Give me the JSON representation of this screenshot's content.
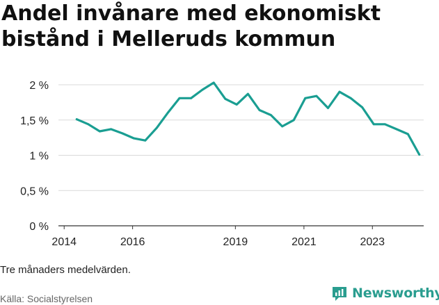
{
  "title": "Andel invånare med ekonomiskt bistånd i Melleruds kommun",
  "note": "Tre månaders medelvärden.",
  "source": "Källa: Socialstyrelsen",
  "brand": {
    "name": "Newsworthy",
    "color": "#2a9d8f",
    "icon": "newsworthy-logo-icon"
  },
  "colors": {
    "line": "#1a9e92",
    "grid": "#d9d9d9",
    "axis": "#333333",
    "tick_text": "#222222"
  },
  "chart_data": {
    "type": "line",
    "title": "Andel invånare med ekonomiskt bistånd i Melleruds kommun",
    "xlabel": "",
    "ylabel": "",
    "x_ticks": [
      "2014",
      "2016",
      "2019",
      "2021",
      "2023"
    ],
    "x_tick_dates": [
      "2014-01-01",
      "2016-01-01",
      "2019-01-01",
      "2021-01-01",
      "2023-01-01"
    ],
    "y_ticks": [
      0,
      0.5,
      1,
      1.5,
      2
    ],
    "y_tick_labels": [
      "0 %",
      "0,5 %",
      "1 %",
      "1,5 %",
      "2 %"
    ],
    "ylim": [
      0,
      2.05
    ],
    "xlim": [
      "2013-11-01",
      "2024-07-01"
    ],
    "grid": true,
    "series": [
      {
        "x": [
          "2014-05-15",
          "2014-09-15",
          "2015-01-15",
          "2015-05-15",
          "2015-09-15",
          "2016-01-15",
          "2016-05-15",
          "2016-09-15",
          "2017-01-15",
          "2017-05-15",
          "2017-09-15",
          "2018-01-15",
          "2018-05-15",
          "2018-09-15",
          "2019-01-15",
          "2019-05-15",
          "2019-09-15",
          "2020-01-15",
          "2020-05-15",
          "2020-09-15",
          "2021-01-15",
          "2021-05-15",
          "2021-09-15",
          "2022-01-15",
          "2022-05-15",
          "2022-09-15",
          "2023-01-15",
          "2023-05-15",
          "2023-09-15",
          "2024-01-15",
          "2024-05-15"
        ],
        "y": [
          1.51,
          1.44,
          1.34,
          1.37,
          1.31,
          1.24,
          1.21,
          1.39,
          1.61,
          1.81,
          1.81,
          1.93,
          2.03,
          1.8,
          1.72,
          1.87,
          1.64,
          1.57,
          1.41,
          1.5,
          1.81,
          1.84,
          1.67,
          1.9,
          1.81,
          1.68,
          1.44,
          1.44,
          1.37,
          1.3,
          1.01
        ]
      }
    ]
  }
}
